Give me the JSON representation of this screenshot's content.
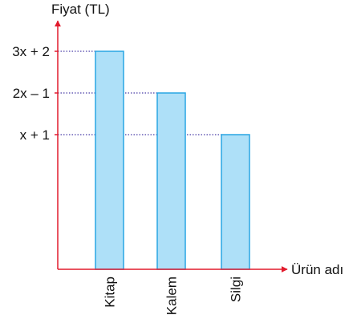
{
  "chart_data": {
    "type": "bar",
    "ylabel": "Fiyat (TL)",
    "xlabel": "Ürün adı",
    "categories": [
      "Kitap",
      "Kalem",
      "Silgi"
    ],
    "values": [
      "3x + 2",
      "2x – 1",
      "x + 1"
    ],
    "y_ticks": [
      "x + 1",
      "2x – 1",
      "3x + 2"
    ],
    "grid": false,
    "guide_lines": "dotted",
    "colors": {
      "bar_fill": "#aee0f8",
      "bar_stroke": "#29a6e3",
      "axis": "#e21b2d",
      "guide": "#4a3fa8"
    }
  }
}
